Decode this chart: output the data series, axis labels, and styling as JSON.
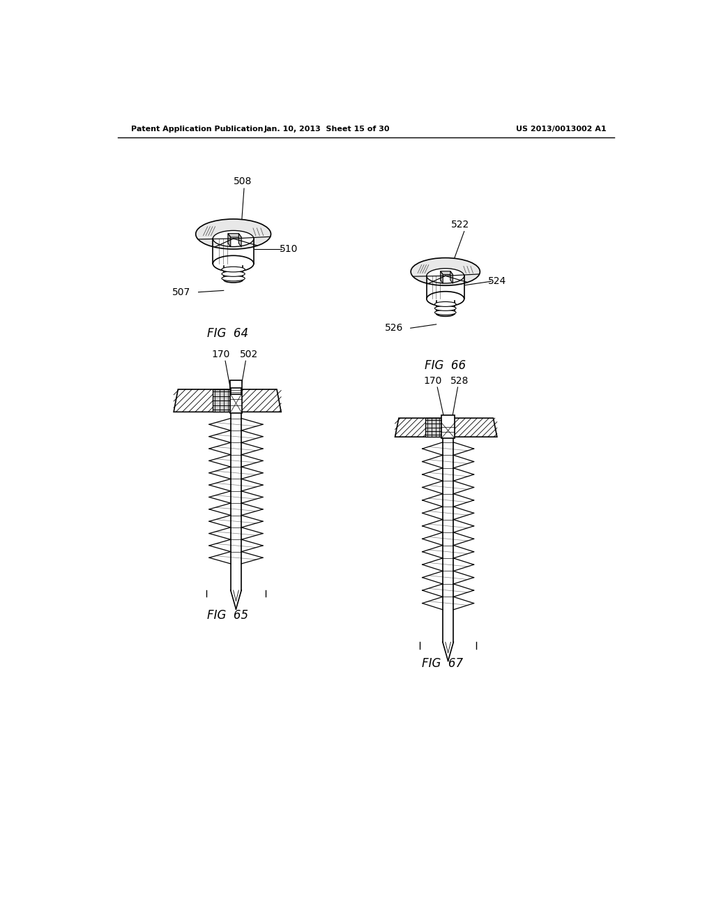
{
  "background_color": "#ffffff",
  "header_left": "Patent Application Publication",
  "header_center": "Jan. 10, 2013  Sheet 15 of 30",
  "header_right": "US 2013/0013002 A1",
  "fig64_label": "FIG  64",
  "fig65_label": "FIG  65",
  "fig66_label": "FIG  66",
  "fig67_label": "FIG  67",
  "line_color": "#000000",
  "text_color": "#000000"
}
